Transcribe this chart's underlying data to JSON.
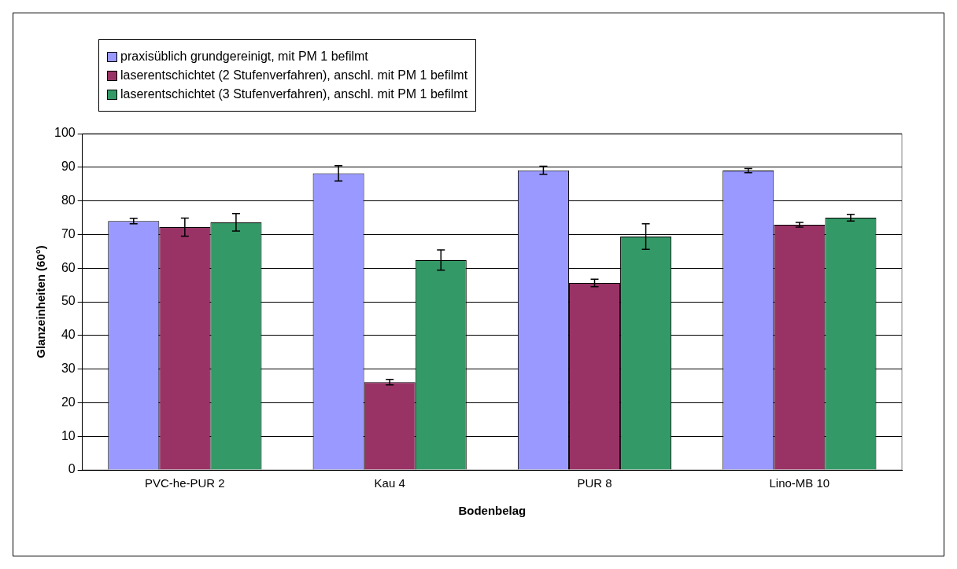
{
  "chart_data": {
    "type": "bar",
    "xlabel": "Bodenbelag",
    "ylabel": "Glanzeinheiten (60°)",
    "categories": [
      "PVC-he-PUR 2",
      "Kau 4",
      "PUR 8",
      "Lino-MB 10"
    ],
    "series": [
      {
        "name": "praxisüblich grundgereinigt, mit PM 1 befilmt",
        "color": "#9999ff",
        "values": [
          74,
          88.2,
          89.1,
          89
        ],
        "errors": [
          0.8,
          2.3,
          1.2,
          0.6
        ]
      },
      {
        "name": "laserentschichtet (2 Stufenverfahren), anschl. mit PM 1 befilmt",
        "color": "#993366",
        "values": [
          72.2,
          26.1,
          55.6,
          72.9
        ],
        "errors": [
          2.7,
          0.8,
          1.1,
          0.7
        ]
      },
      {
        "name": "laserentschichtet (3 Stufenverfahren), anschl. mit PM 1 befilmt",
        "color": "#339966",
        "values": [
          73.6,
          62.4,
          69.4,
          75
        ],
        "errors": [
          2.6,
          3,
          3.8,
          1
        ]
      }
    ],
    "ylim": [
      0,
      100
    ],
    "yticks": [
      0,
      10,
      20,
      30,
      40,
      50,
      60,
      70,
      80,
      90,
      100
    ],
    "grid": "y",
    "legend": "top left"
  }
}
